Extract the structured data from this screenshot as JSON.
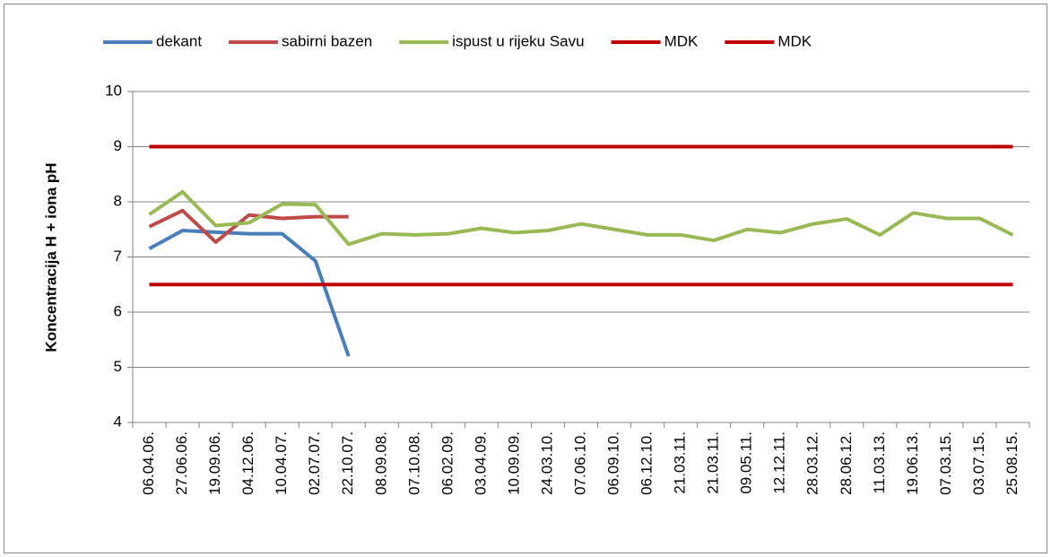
{
  "chart_data": {
    "type": "line",
    "ylabel": "Koncentracija H + iona  pH",
    "categories": [
      "06.04.06.",
      "27.06.06.",
      "19.09.06.",
      "04.12.06.",
      "10.04.07.",
      "02.07.07.",
      "22.10.07.",
      "08.09.08.",
      "07.10.08.",
      "06.02.09.",
      "03.04.09.",
      "10.09.09.",
      "24.03.10.",
      "07.06.10.",
      "06.09.10.",
      "06.12.10.",
      "21.03.11.",
      "21.03.11.",
      "09.05.11.",
      "12.12.11.",
      "28.03.12.",
      "28.06.12.",
      "11.03.13.",
      "19.06.13.",
      "07.03.15.",
      "03.07.15.",
      "25.08.15."
    ],
    "series": [
      {
        "name": "dekant",
        "color": "#4a7ebb",
        "values": [
          7.15,
          7.48,
          7.45,
          7.42,
          7.42,
          6.93,
          5.2,
          null,
          null,
          null,
          null,
          null,
          null,
          null,
          null,
          null,
          null,
          null,
          null,
          null,
          null,
          null,
          null,
          null,
          null,
          null,
          null
        ]
      },
      {
        "name": "sabirni bazen",
        "color": "#be4b48",
        "values": [
          7.55,
          7.84,
          7.27,
          7.76,
          7.7,
          7.73,
          7.73,
          null,
          null,
          null,
          null,
          null,
          null,
          null,
          null,
          null,
          null,
          null,
          null,
          null,
          null,
          null,
          null,
          null,
          null,
          null,
          null
        ]
      },
      {
        "name": "ispust u rijeku Savu",
        "color": "#98b954",
        "values": [
          7.77,
          8.18,
          7.57,
          7.62,
          7.96,
          7.95,
          7.23,
          7.42,
          7.4,
          7.42,
          7.52,
          7.44,
          7.48,
          7.6,
          7.5,
          7.4,
          7.4,
          7.3,
          7.5,
          7.44,
          7.6,
          7.69,
          7.4,
          7.8,
          7.7,
          7.7,
          7.4
        ]
      },
      {
        "name": "MDK",
        "color": "#c00000",
        "values": [
          9,
          9,
          9,
          9,
          9,
          9,
          9,
          9,
          9,
          9,
          9,
          9,
          9,
          9,
          9,
          9,
          9,
          9,
          9,
          9,
          9,
          9,
          9,
          9,
          9,
          9,
          9
        ]
      },
      {
        "name": "MDK",
        "color": "#c00000",
        "values": [
          6.5,
          6.5,
          6.5,
          6.5,
          6.5,
          6.5,
          6.5,
          6.5,
          6.5,
          6.5,
          6.5,
          6.5,
          6.5,
          6.5,
          6.5,
          6.5,
          6.5,
          6.5,
          6.5,
          6.5,
          6.5,
          6.5,
          6.5,
          6.5,
          6.5,
          6.5,
          6.5
        ]
      }
    ],
    "ylim": [
      4,
      10
    ],
    "yticks": [
      4,
      5,
      6,
      7,
      8,
      9,
      10
    ],
    "grid": true,
    "legend": "top"
  }
}
